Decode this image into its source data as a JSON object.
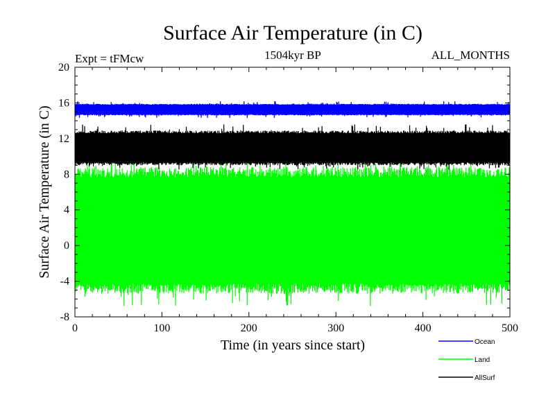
{
  "chart_data": {
    "type": "line",
    "title": "Surface Air Temperature (in C)",
    "subtitle_left": "Expt = tFMcw",
    "subtitle_center": "1504kyr BP",
    "subtitle_right": "ALL_MONTHS",
    "xlabel": "Time (in years since start)",
    "ylabel": "Surface Air Temperature (in C)",
    "xlim": [
      0,
      500
    ],
    "ylim": [
      -8,
      20
    ],
    "xticks": [
      0,
      100,
      200,
      300,
      400,
      500
    ],
    "yticks": [
      -8,
      -4,
      0,
      4,
      8,
      12,
      16,
      20
    ],
    "grid": false,
    "legend_position": "bottom-right",
    "series": [
      {
        "name": "Ocean",
        "color": "#0000ff",
        "band_low": 14.6,
        "band_high": 15.9,
        "extreme_low": 14.3,
        "extreme_high": 16.2
      },
      {
        "name": "Land",
        "color": "#00ff00",
        "band_low": -5.4,
        "band_high": 8.8,
        "extreme_low": -6.8,
        "extreme_high": 9.4
      },
      {
        "name": "AllSurf",
        "color": "#000000",
        "band_low": 9.0,
        "band_high": 12.9,
        "extreme_low": 8.5,
        "extreme_high": 13.6
      }
    ]
  }
}
